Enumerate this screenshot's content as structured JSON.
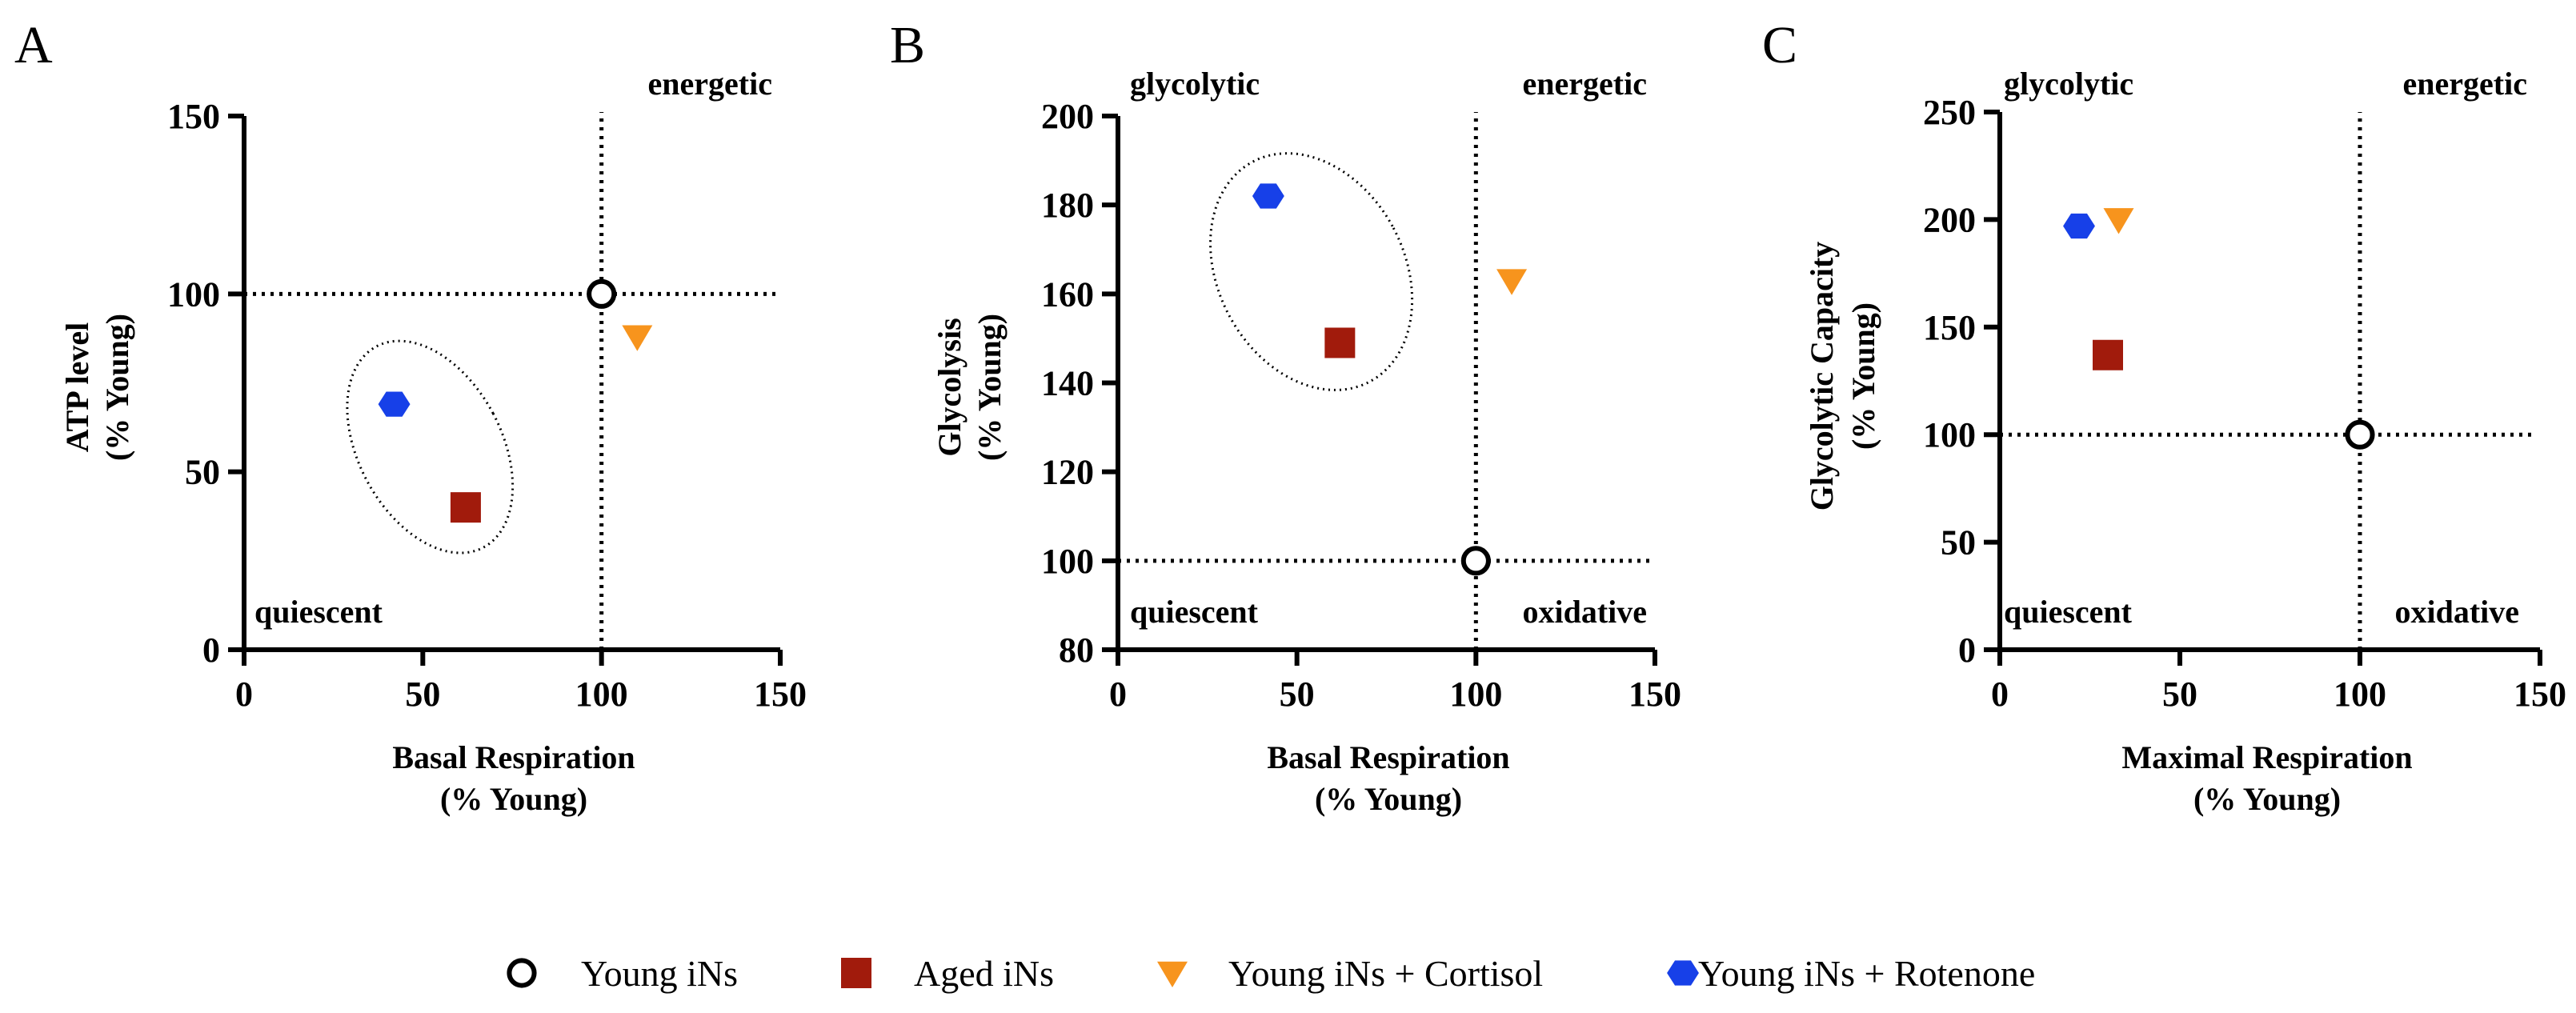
{
  "series_styles": [
    {
      "name": "Young iNs",
      "marker": "circle-open",
      "color": "#000000"
    },
    {
      "name": "Aged iNs",
      "marker": "square",
      "color": "#a11b0c"
    },
    {
      "name": "Young iNs + Cortisol",
      "marker": "triangle-down",
      "color": "#f7941d"
    },
    {
      "name": "Young iNs + Rotenone",
      "marker": "hexagon",
      "color": "#1740e8"
    }
  ],
  "legend": {
    "young": "Young iNs",
    "aged": "Aged iNs",
    "cortisol": "Young iNs + Cortisol",
    "rotenone": "Young iNs + Rotenone"
  },
  "panels": {
    "A": {
      "letter": "A",
      "quadrants": {
        "top_left": "",
        "top_right": "energetic",
        "bottom_left": "quiescent",
        "bottom_right": ""
      },
      "xlabel_line1": "Basal Respiration",
      "xlabel_line2": "(% Young)",
      "ylabel_line1": "ATP level",
      "ylabel_line2": "(% Young)"
    },
    "B": {
      "letter": "B",
      "quadrants": {
        "top_left": "glycolytic",
        "top_right": "energetic",
        "bottom_left": "quiescent",
        "bottom_right": "oxidative"
      },
      "xlabel_line1": "Basal Respiration",
      "xlabel_line2": "(% Young)",
      "ylabel_line1": "Glycolysis",
      "ylabel_line2": "(% Young)"
    },
    "C": {
      "letter": "C",
      "quadrants": {
        "top_left": "glycolytic",
        "top_right": "energetic",
        "bottom_left": "quiescent",
        "bottom_right": "oxidative"
      },
      "xlabel_line1": "Maximal Respiration",
      "xlabel_line2": "(% Young)",
      "ylabel_line1": "Glycolytic Capacity",
      "ylabel_line2": "(% Young)"
    }
  },
  "chart_data": [
    {
      "type": "scatter",
      "title": "A",
      "xlabel": "Basal Respiration (% Young)",
      "ylabel": "ATP level (% Young)",
      "xlim": [
        0,
        150
      ],
      "ylim": [
        0,
        150
      ],
      "xticks": [
        0,
        50,
        100,
        150
      ],
      "yticks": [
        0,
        50,
        100,
        150
      ],
      "reference_lines": {
        "x": 100,
        "y": 100
      },
      "series": [
        {
          "name": "Young iNs",
          "x": 100,
          "y": 100
        },
        {
          "name": "Aged iNs",
          "x": 62,
          "y": 40
        },
        {
          "name": "Young iNs + Cortisol",
          "x": 110,
          "y": 88
        },
        {
          "name": "Young iNs + Rotenone",
          "x": 42,
          "y": 69
        }
      ],
      "ellipse": {
        "center": [
          52,
          57
        ],
        "rx_data": 20,
        "ry_data": 32,
        "rotation_deg": -28
      }
    },
    {
      "type": "scatter",
      "title": "B",
      "xlabel": "Basal Respiration (% Young)",
      "ylabel": "Glycolysis (% Young)",
      "xlim": [
        0,
        150
      ],
      "ylim": [
        80,
        200
      ],
      "xticks": [
        0,
        50,
        100,
        150
      ],
      "yticks": [
        80,
        100,
        120,
        140,
        160,
        180,
        200
      ],
      "reference_lines": {
        "x": 100,
        "y": 100
      },
      "series": [
        {
          "name": "Young iNs",
          "x": 100,
          "y": 100
        },
        {
          "name": "Aged iNs",
          "x": 62,
          "y": 149
        },
        {
          "name": "Young iNs + Cortisol",
          "x": 110,
          "y": 163
        },
        {
          "name": "Young iNs + Rotenone",
          "x": 42,
          "y": 182
        }
      ],
      "ellipse": {
        "center": [
          54,
          165
        ],
        "rx_data": 26,
        "ry_data": 28,
        "rotation_deg": -28
      }
    },
    {
      "type": "scatter",
      "title": "C",
      "xlabel": "Maximal Respiration (% Young)",
      "ylabel": "Glycolytic Capacity (% Young)",
      "xlim": [
        0,
        150
      ],
      "ylim": [
        0,
        250
      ],
      "xticks": [
        0,
        50,
        100,
        150
      ],
      "yticks": [
        0,
        50,
        100,
        150,
        200,
        250
      ],
      "reference_lines": {
        "x": 100,
        "y": 100
      },
      "series": [
        {
          "name": "Young iNs",
          "x": 100,
          "y": 100
        },
        {
          "name": "Aged iNs",
          "x": 30,
          "y": 137
        },
        {
          "name": "Young iNs + Cortisol",
          "x": 33,
          "y": 200
        },
        {
          "name": "Young iNs + Rotenone",
          "x": 22,
          "y": 197
        }
      ]
    }
  ]
}
